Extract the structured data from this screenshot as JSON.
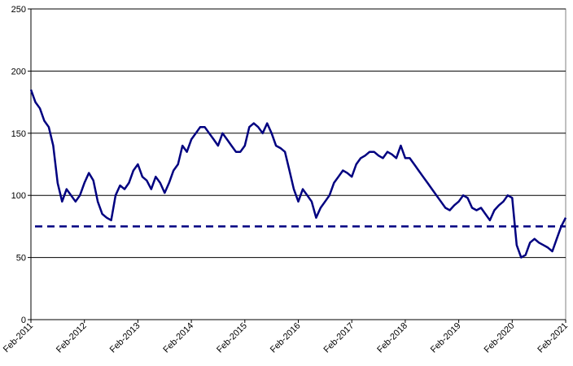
{
  "chart_data": {
    "type": "line",
    "x": [
      "2011-02",
      "2011-03",
      "2011-04",
      "2011-05",
      "2011-06",
      "2011-07",
      "2011-08",
      "2011-09",
      "2011-10",
      "2011-11",
      "2011-12",
      "2012-01",
      "2012-02",
      "2012-03",
      "2012-04",
      "2012-05",
      "2012-06",
      "2012-07",
      "2012-08",
      "2012-09",
      "2012-10",
      "2012-11",
      "2012-12",
      "2013-01",
      "2013-02",
      "2013-03",
      "2013-04",
      "2013-05",
      "2013-06",
      "2013-07",
      "2013-08",
      "2013-09",
      "2013-10",
      "2013-11",
      "2013-12",
      "2014-01",
      "2014-02",
      "2014-03",
      "2014-04",
      "2014-05",
      "2014-06",
      "2014-07",
      "2014-08",
      "2014-09",
      "2014-10",
      "2014-11",
      "2014-12",
      "2015-01",
      "2015-02",
      "2015-03",
      "2015-04",
      "2015-05",
      "2015-06",
      "2015-07",
      "2015-08",
      "2015-09",
      "2015-10",
      "2015-11",
      "2015-12",
      "2016-01",
      "2016-02",
      "2016-03",
      "2016-04",
      "2016-05",
      "2016-06",
      "2016-07",
      "2016-08",
      "2016-09",
      "2016-10",
      "2016-11",
      "2016-12",
      "2017-01",
      "2017-02",
      "2017-03",
      "2017-04",
      "2017-05",
      "2017-06",
      "2017-07",
      "2017-08",
      "2017-09",
      "2017-10",
      "2017-11",
      "2017-12",
      "2018-01",
      "2018-02",
      "2018-03",
      "2018-04",
      "2018-05",
      "2018-06",
      "2018-07",
      "2018-08",
      "2018-09",
      "2018-10",
      "2018-11",
      "2018-12",
      "2019-01",
      "2019-02",
      "2019-03",
      "2019-04",
      "2019-05",
      "2019-06",
      "2019-07",
      "2019-08",
      "2019-09",
      "2019-10",
      "2019-11",
      "2019-12",
      "2020-01",
      "2020-02",
      "2020-03",
      "2020-04",
      "2020-05",
      "2020-06",
      "2020-07",
      "2020-08",
      "2020-09",
      "2020-10",
      "2020-11",
      "2020-12",
      "2021-01",
      "2021-02"
    ],
    "values": [
      185,
      175,
      170,
      160,
      155,
      140,
      110,
      95,
      105,
      100,
      95,
      100,
      110,
      118,
      112,
      95,
      85,
      82,
      80,
      100,
      108,
      105,
      110,
      120,
      125,
      115,
      112,
      105,
      115,
      110,
      102,
      110,
      120,
      125,
      140,
      135,
      145,
      150,
      155,
      155,
      150,
      145,
      140,
      150,
      145,
      140,
      135,
      135,
      140,
      155,
      158,
      155,
      150,
      158,
      150,
      140,
      138,
      135,
      120,
      105,
      95,
      105,
      100,
      95,
      82,
      90,
      95,
      100,
      110,
      115,
      120,
      118,
      115,
      125,
      130,
      132,
      135,
      135,
      132,
      130,
      135,
      133,
      130,
      140,
      130,
      130,
      125,
      120,
      115,
      110,
      105,
      100,
      95,
      90,
      88,
      92,
      95,
      100,
      98,
      90,
      88,
      90,
      85,
      80,
      88,
      92,
      95,
      100,
      98,
      60,
      50,
      52,
      62,
      65,
      62,
      60,
      58,
      55,
      65,
      75,
      82
    ],
    "color": "#000080",
    "reference_line": {
      "value": 75,
      "style": "dashed",
      "color": "#000080"
    },
    "xlim": [
      "2011-02",
      "2021-02"
    ],
    "xticks": [
      {
        "value": "2011-02",
        "label": "Feb-2011"
      },
      {
        "value": "2012-02",
        "label": "Feb-2012"
      },
      {
        "value": "2013-02",
        "label": "Feb-2013"
      },
      {
        "value": "2014-02",
        "label": "Feb-2014"
      },
      {
        "value": "2015-02",
        "label": "Feb-2015"
      },
      {
        "value": "2016-02",
        "label": "Feb-2016"
      },
      {
        "value": "2017-02",
        "label": "Feb-2017"
      },
      {
        "value": "2018-02",
        "label": "Feb-2018"
      },
      {
        "value": "2019-02",
        "label": "Feb-2019"
      },
      {
        "value": "2020-02",
        "label": "Feb-2020"
      },
      {
        "value": "2021-02",
        "label": "Feb-2021"
      }
    ],
    "ylim": [
      0,
      250
    ],
    "yticks": [
      0,
      50,
      100,
      150,
      200,
      250
    ],
    "grid": true
  }
}
